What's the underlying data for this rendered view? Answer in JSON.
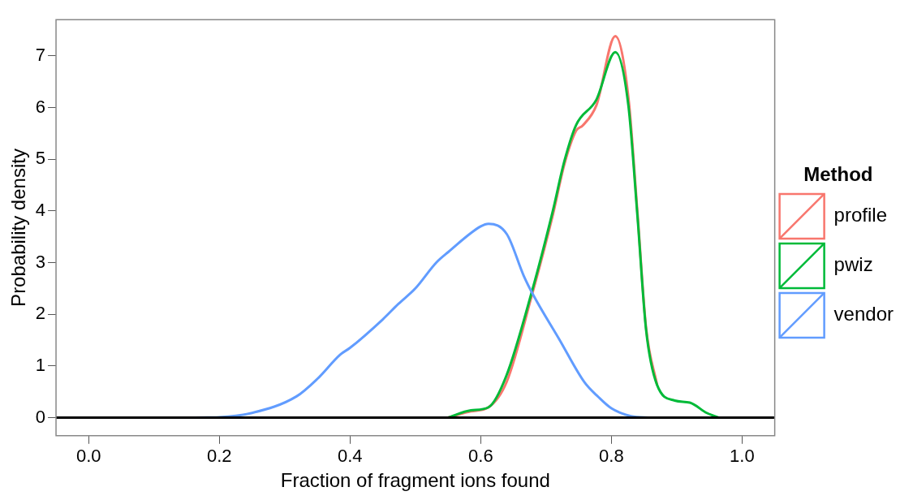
{
  "chart_data": {
    "type": "line",
    "xlabel": "Fraction of fragment ions found",
    "ylabel": "Probability density",
    "legend_title": "Method",
    "legend": "right",
    "grid": false,
    "marker": "none",
    "line_style": "solid",
    "xlim": [
      -0.05,
      1.05
    ],
    "ylim": [
      -0.35,
      7.7
    ],
    "xticks": [
      {
        "value": 0,
        "label": "0.0"
      },
      {
        "value": 0.2,
        "label": "0.2"
      },
      {
        "value": 0.4,
        "label": "0.4"
      },
      {
        "value": 0.6,
        "label": "0.6"
      },
      {
        "value": 0.8,
        "label": "0.8"
      },
      {
        "value": 1,
        "label": "1.0"
      }
    ],
    "yticks": [
      0,
      1,
      2,
      3,
      4,
      5,
      6,
      7
    ],
    "ref_lines": [
      {
        "axis": "y",
        "value": 0,
        "color": "#000000"
      }
    ],
    "series": [
      {
        "name": "profile",
        "color": "#f8766d",
        "x": [
          0.55,
          0.585,
          0.612,
          0.64,
          0.679,
          0.71,
          0.728,
          0.746,
          0.756,
          0.777,
          0.806,
          0.826,
          0.84,
          0.853,
          0.87
        ],
        "values": [
          0,
          0.12,
          0.2,
          0.7,
          2.4,
          3.9,
          4.9,
          5.55,
          5.65,
          6.04,
          7.38,
          6.2,
          3.95,
          1.75,
          0.63
        ]
      },
      {
        "name": "pwiz",
        "color": "#00ba38",
        "x": [
          0.55,
          0.585,
          0.612,
          0.639,
          0.679,
          0.71,
          0.728,
          0.746,
          0.777,
          0.806,
          0.826,
          0.84,
          0.853,
          0.87,
          0.897,
          0.92,
          0.946,
          0.964
        ],
        "values": [
          0,
          0.14,
          0.2,
          0.8,
          2.47,
          3.98,
          4.96,
          5.66,
          6.15,
          7.07,
          6.04,
          3.88,
          1.71,
          0.63,
          0.33,
          0.29,
          0.09,
          0
        ]
      },
      {
        "name": "vendor",
        "color": "#619cff",
        "x": [
          0.15,
          0.2,
          0.25,
          0.318,
          0.35,
          0.385,
          0.4,
          0.45,
          0.474,
          0.5,
          0.532,
          0.55,
          0.6,
          0.612,
          0.64,
          0.666,
          0.681,
          0.72,
          0.759,
          0.78,
          0.8,
          0.83,
          0.86
        ],
        "values": [
          0,
          0.01,
          0.09,
          0.41,
          0.75,
          1.22,
          1.35,
          1.9,
          2.2,
          2.5,
          3.0,
          3.2,
          3.7,
          3.75,
          3.55,
          2.74,
          2.36,
          1.52,
          0.68,
          0.4,
          0.18,
          0.03,
          0
        ]
      }
    ]
  }
}
